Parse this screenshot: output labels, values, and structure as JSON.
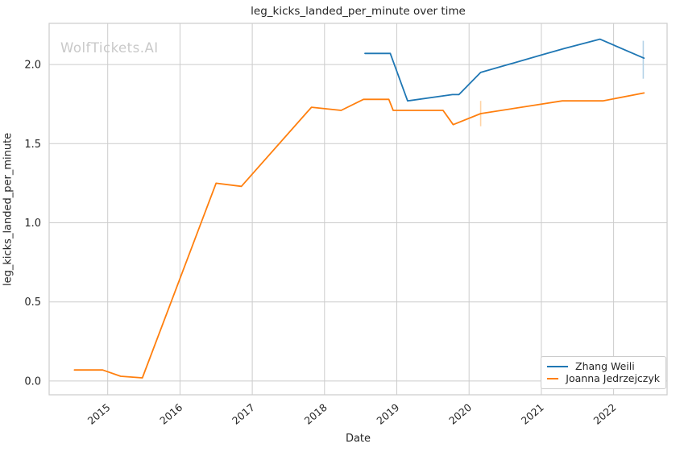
{
  "watermark": "WolfTickets.AI",
  "chart_data": {
    "type": "line",
    "title": "leg_kicks_landed_per_minute over time",
    "xlabel": "Date",
    "ylabel": "leg_kicks_landed_per_minute",
    "xlim": [
      2014.19,
      2022.74
    ],
    "ylim": [
      -0.087,
      2.26
    ],
    "x_ticks": [
      2015,
      2016,
      2017,
      2018,
      2019,
      2020,
      2021,
      2022
    ],
    "x_tick_labels": [
      "2015",
      "2016",
      "2017",
      "2018",
      "2019",
      "2020",
      "2021",
      "2022"
    ],
    "y_ticks": [
      0.0,
      0.5,
      1.0,
      1.5,
      2.0
    ],
    "y_tick_labels": [
      "0.0",
      "0.5",
      "1.0",
      "1.5",
      "2.0"
    ],
    "grid": true,
    "legend_position": "lower right",
    "series": [
      {
        "name": "Zhang Weili",
        "color": "#1f77b4",
        "points": [
          [
            2018.56,
            2.07
          ],
          [
            2018.91,
            2.07
          ],
          [
            2019.15,
            1.77
          ],
          [
            2019.77,
            1.81
          ],
          [
            2019.86,
            1.81
          ],
          [
            2020.16,
            1.95
          ],
          [
            2021.0,
            2.06
          ],
          [
            2021.31,
            2.1
          ],
          [
            2021.81,
            2.16
          ],
          [
            2022.42,
            2.04
          ]
        ]
      },
      {
        "name": "Joanna Jedrzejczyk",
        "color": "#ff7f0e",
        "points": [
          [
            2014.54,
            0.07
          ],
          [
            2014.93,
            0.07
          ],
          [
            2015.18,
            0.03
          ],
          [
            2015.48,
            0.02
          ],
          [
            2016.5,
            1.25
          ],
          [
            2016.85,
            1.23
          ],
          [
            2017.82,
            1.73
          ],
          [
            2018.23,
            1.71
          ],
          [
            2018.54,
            1.78
          ],
          [
            2018.89,
            1.78
          ],
          [
            2018.95,
            1.71
          ],
          [
            2019.64,
            1.71
          ],
          [
            2019.78,
            1.62
          ],
          [
            2020.16,
            1.69
          ],
          [
            2021.29,
            1.77
          ],
          [
            2021.85,
            1.77
          ],
          [
            2022.42,
            1.82
          ]
        ]
      }
    ],
    "error_bars": [
      {
        "series": "Joanna Jedrzejczyk",
        "x": 2020.16,
        "y_low": 1.61,
        "y_high": 1.77,
        "color": "#ffd3a4"
      },
      {
        "series": "Zhang Weili",
        "x": 2022.41,
        "y_low": 1.91,
        "y_high": 2.15,
        "color": "#b5d3e7"
      }
    ]
  },
  "colors": {
    "grid": "#cccccc",
    "spine": "#cccccc",
    "text": "#262626",
    "watermark": "#c9c9c9",
    "background": "#ffffff"
  }
}
